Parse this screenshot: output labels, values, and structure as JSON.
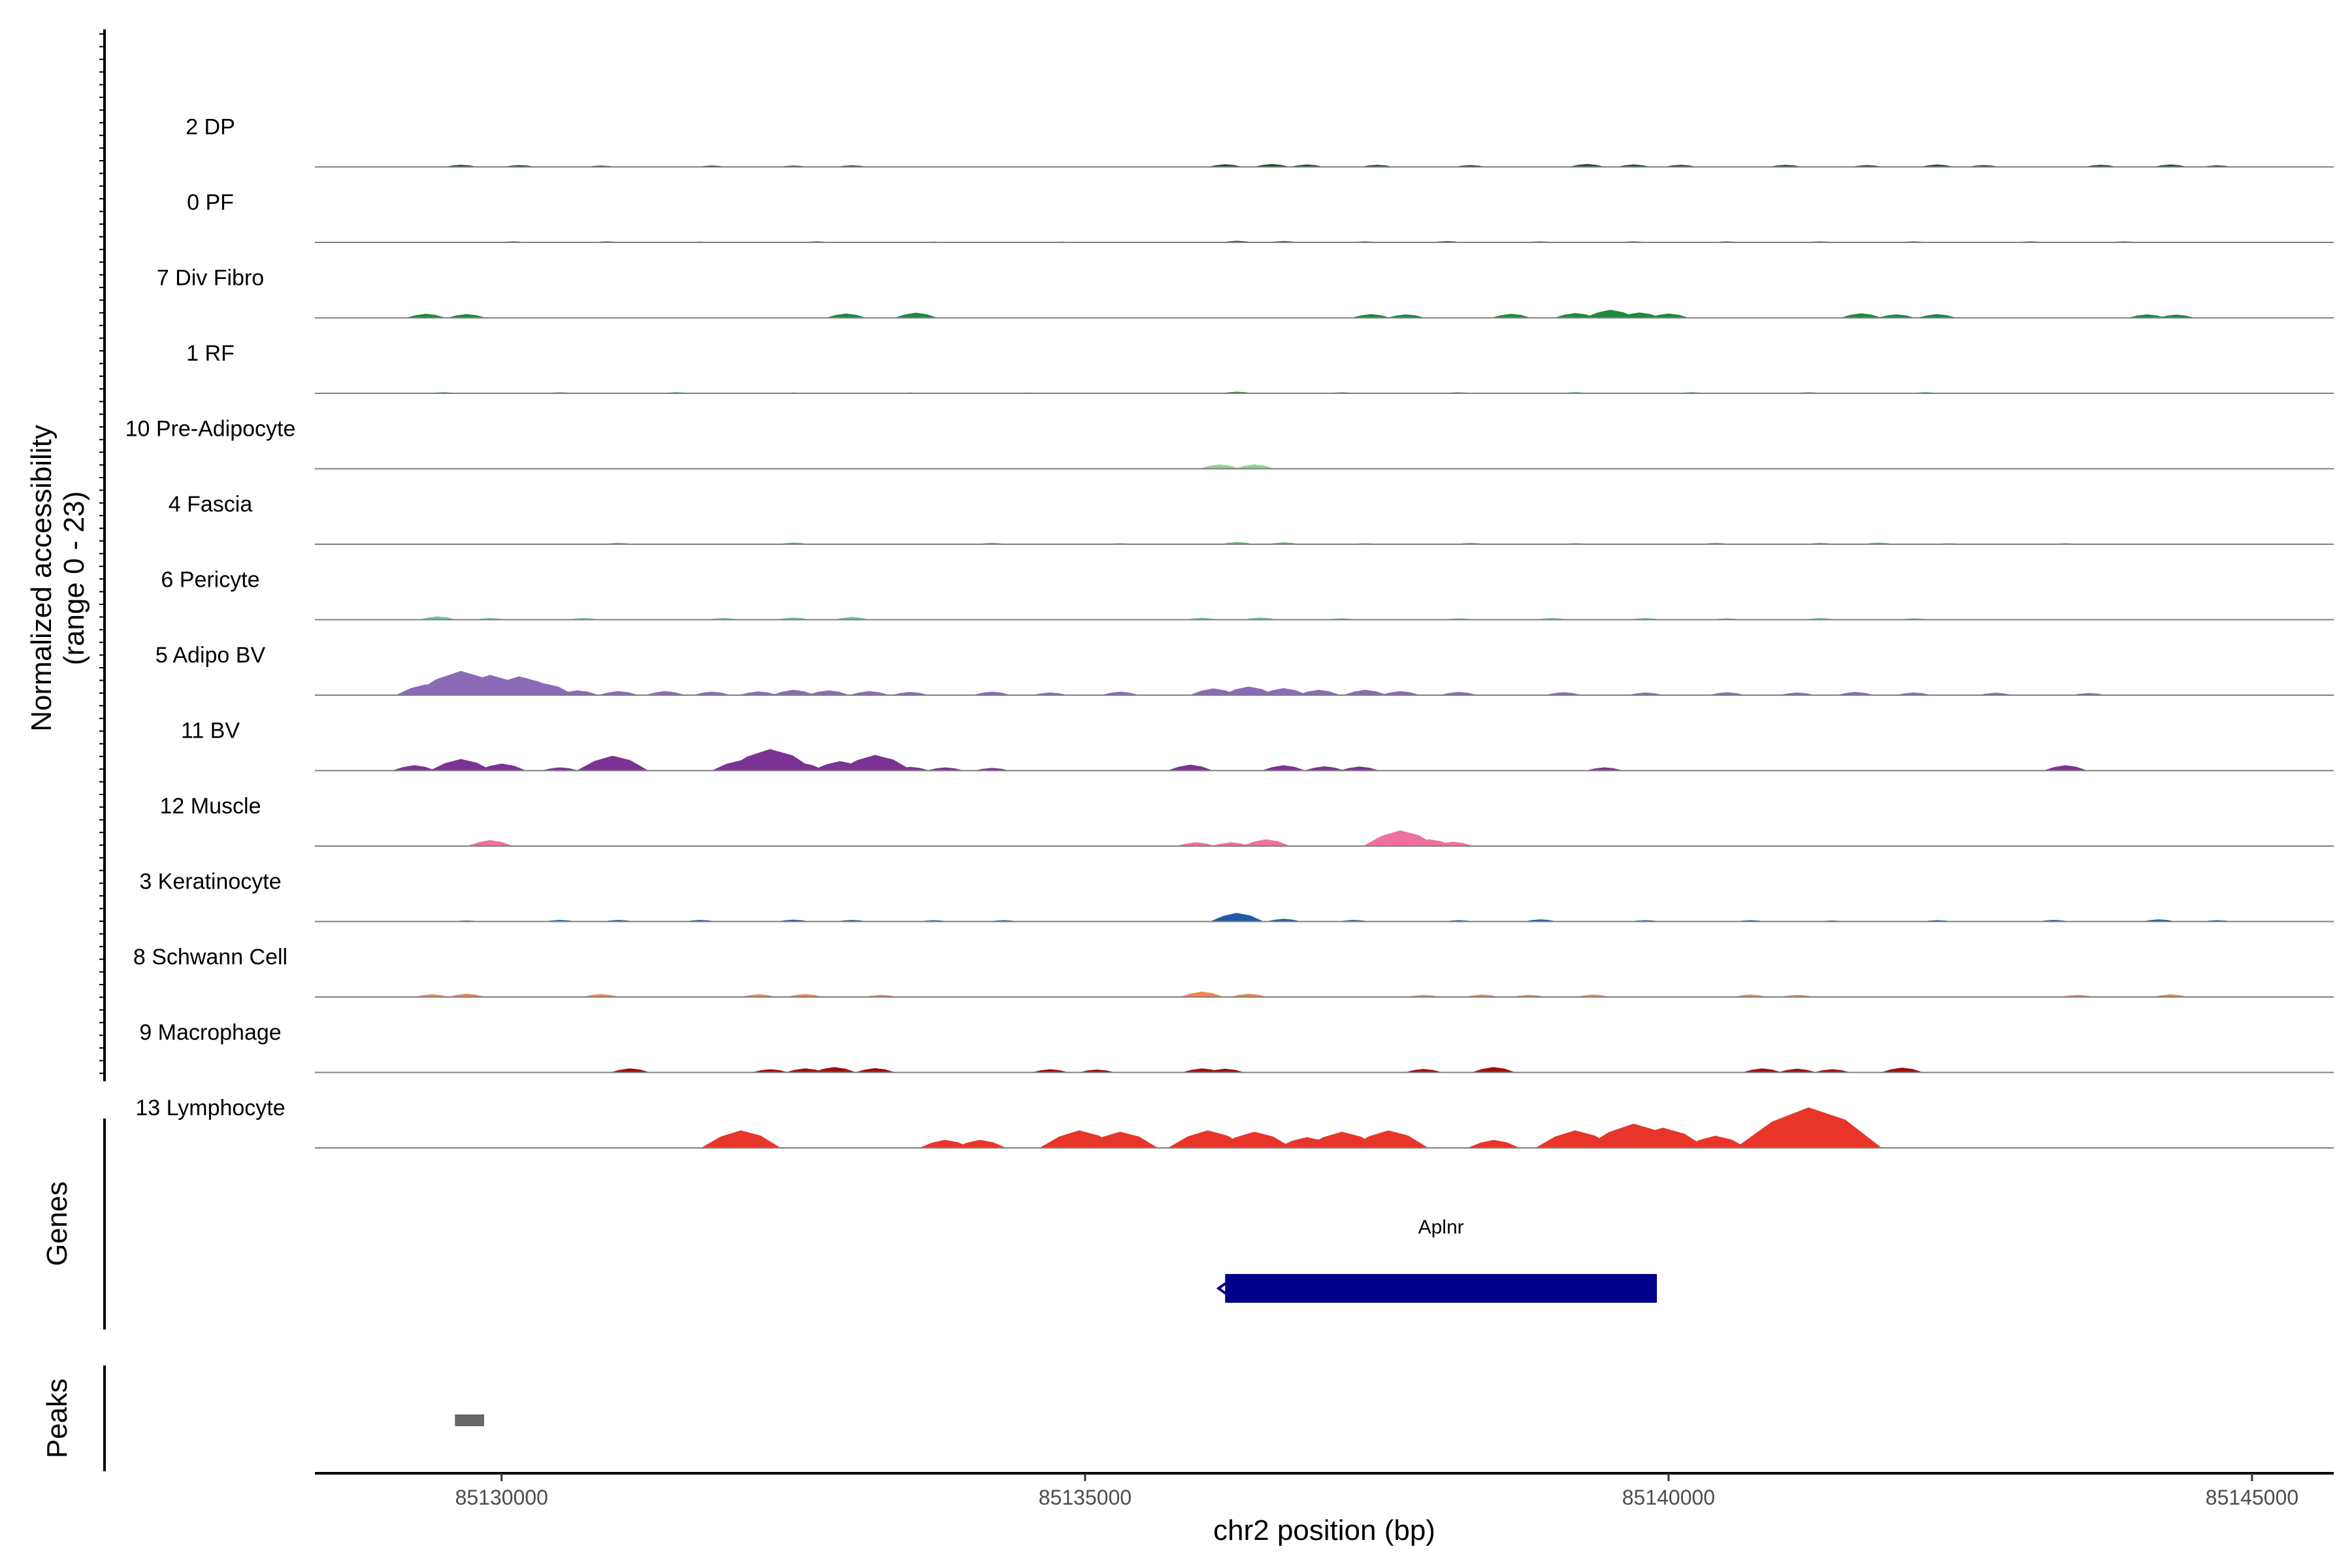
{
  "chart_data": {
    "type": "area",
    "title": "",
    "ylabel": "Normalized accessibility",
    "ylabel_range": "(range 0 - 23)",
    "ylim": [
      0,
      23
    ],
    "xlabel": "chr2 position (bp)",
    "xlim": [
      85128400,
      85145700
    ],
    "xticks": [
      85130000,
      85135000,
      85140000,
      85145000
    ],
    "xtick_labels": [
      "85130000",
      "85135000",
      "85140000",
      "85145000"
    ],
    "tracks": [
      {
        "label": "2 DP",
        "color": "#1b4d2b",
        "peaks": [
          [
            85129650,
            0.8
          ],
          [
            85130150,
            0.7
          ],
          [
            85130850,
            0.5
          ],
          [
            85131800,
            0.5
          ],
          [
            85132500,
            0.5
          ],
          [
            85133000,
            0.6
          ],
          [
            85136200,
            1.0
          ],
          [
            85136600,
            1.1
          ],
          [
            85136900,
            0.9
          ],
          [
            85137500,
            0.8
          ],
          [
            85138300,
            0.7
          ],
          [
            85139300,
            1.1
          ],
          [
            85139700,
            0.9
          ],
          [
            85140100,
            0.8
          ],
          [
            85141000,
            0.8
          ],
          [
            85141700,
            0.7
          ],
          [
            85142300,
            0.9
          ],
          [
            85142700,
            0.7
          ],
          [
            85143700,
            0.8
          ],
          [
            85144300,
            0.9
          ],
          [
            85144700,
            0.6
          ]
        ]
      },
      {
        "label": "0 PF",
        "color": "#1f6b3e",
        "peaks": [
          [
            85130100,
            0.4
          ],
          [
            85130900,
            0.4
          ],
          [
            85131700,
            0.3
          ],
          [
            85132700,
            0.4
          ],
          [
            85133700,
            0.3
          ],
          [
            85134800,
            0.3
          ],
          [
            85136300,
            0.6
          ],
          [
            85136700,
            0.5
          ],
          [
            85137400,
            0.4
          ],
          [
            85138100,
            0.5
          ],
          [
            85138900,
            0.4
          ],
          [
            85139700,
            0.4
          ],
          [
            85140500,
            0.4
          ],
          [
            85141300,
            0.4
          ],
          [
            85142100,
            0.4
          ],
          [
            85143100,
            0.4
          ],
          [
            85143900,
            0.4
          ]
        ]
      },
      {
        "label": "7 Div Fibro",
        "color": "#1e8a3e",
        "peaks": [
          [
            85129350,
            1.5
          ],
          [
            85129700,
            1.4
          ],
          [
            85132950,
            1.6
          ],
          [
            85133550,
            1.9
          ],
          [
            85137450,
            1.4
          ],
          [
            85137750,
            1.3
          ],
          [
            85138650,
            1.5
          ],
          [
            85139200,
            1.8
          ],
          [
            85139500,
            3.0
          ],
          [
            85139750,
            2.0
          ],
          [
            85140000,
            1.6
          ],
          [
            85141650,
            1.7
          ],
          [
            85141950,
            1.3
          ],
          [
            85142300,
            1.4
          ],
          [
            85144100,
            1.3
          ],
          [
            85144350,
            1.2
          ]
        ]
      },
      {
        "label": "1 RF",
        "color": "#2b8f44",
        "peaks": [
          [
            85129500,
            0.4
          ],
          [
            85130500,
            0.4
          ],
          [
            85131500,
            0.4
          ],
          [
            85132500,
            0.3
          ],
          [
            85133500,
            0.3
          ],
          [
            85134500,
            0.3
          ],
          [
            85136300,
            0.6
          ],
          [
            85137200,
            0.4
          ],
          [
            85138200,
            0.4
          ],
          [
            85139200,
            0.4
          ],
          [
            85140200,
            0.4
          ],
          [
            85141200,
            0.4
          ],
          [
            85142200,
            0.4
          ]
        ]
      },
      {
        "label": "10 Pre-Adipocyte",
        "color": "#8fd48a",
        "peaks": [
          [
            85136150,
            1.6
          ],
          [
            85136450,
            1.6
          ]
        ]
      },
      {
        "label": "4 Fascia",
        "color": "#5fb870",
        "peaks": [
          [
            85131000,
            0.5
          ],
          [
            85132500,
            0.6
          ],
          [
            85134200,
            0.5
          ],
          [
            85135300,
            0.4
          ],
          [
            85136300,
            0.8
          ],
          [
            85136700,
            0.7
          ],
          [
            85137400,
            0.4
          ],
          [
            85138300,
            0.5
          ],
          [
            85139200,
            0.4
          ],
          [
            85140400,
            0.5
          ],
          [
            85141300,
            0.5
          ],
          [
            85141800,
            0.6
          ],
          [
            85142400,
            0.4
          ],
          [
            85143400,
            0.4
          ]
        ]
      },
      {
        "label": "6 Pericyte",
        "color": "#6cc2a3",
        "peaks": [
          [
            85129450,
            1.2
          ],
          [
            85129900,
            0.6
          ],
          [
            85130700,
            0.6
          ],
          [
            85131900,
            0.6
          ],
          [
            85132500,
            0.8
          ],
          [
            85133000,
            1.0
          ],
          [
            85136000,
            0.7
          ],
          [
            85136500,
            0.8
          ],
          [
            85137200,
            0.5
          ],
          [
            85138200,
            0.5
          ],
          [
            85139000,
            0.6
          ],
          [
            85139800,
            0.6
          ],
          [
            85140500,
            0.5
          ],
          [
            85141300,
            0.6
          ],
          [
            85142100,
            0.5
          ]
        ]
      },
      {
        "label": "5 Adipo BV",
        "color": "#8b6bb8",
        "peaks": [
          [
            85129350,
            4.0
          ],
          [
            85129650,
            9.0
          ],
          [
            85129900,
            7.5
          ],
          [
            85130150,
            7.0
          ],
          [
            85130350,
            4.5
          ],
          [
            85130650,
            1.8
          ],
          [
            85131000,
            1.5
          ],
          [
            85131400,
            1.5
          ],
          [
            85131800,
            1.3
          ],
          [
            85132200,
            1.4
          ],
          [
            85132500,
            2.0
          ],
          [
            85132800,
            1.8
          ],
          [
            85133150,
            1.5
          ],
          [
            85133500,
            1.2
          ],
          [
            85134200,
            1.3
          ],
          [
            85134700,
            1.0
          ],
          [
            85135300,
            1.3
          ],
          [
            85136100,
            2.5
          ],
          [
            85136400,
            3.2
          ],
          [
            85136700,
            2.6
          ],
          [
            85137000,
            2.0
          ],
          [
            85137400,
            2.0
          ],
          [
            85137700,
            1.5
          ],
          [
            85138200,
            1.2
          ],
          [
            85139100,
            1.1
          ],
          [
            85139800,
            1.0
          ],
          [
            85140500,
            1.1
          ],
          [
            85141100,
            1.0
          ],
          [
            85141600,
            1.2
          ],
          [
            85142100,
            1.0
          ],
          [
            85142800,
            0.9
          ],
          [
            85143600,
            0.8
          ]
        ]
      },
      {
        "label": "11 BV",
        "color": "#7b3294",
        "peaks": [
          [
            85129250,
            2.0
          ],
          [
            85129650,
            4.3
          ],
          [
            85130000,
            2.6
          ],
          [
            85130500,
            1.2
          ],
          [
            85130950,
            5.5
          ],
          [
            85132050,
            3.8
          ],
          [
            85132300,
            8.0
          ],
          [
            85132550,
            3.0
          ],
          [
            85132900,
            3.5
          ],
          [
            85133200,
            5.8
          ],
          [
            85133500,
            1.4
          ],
          [
            85133800,
            1.2
          ],
          [
            85134200,
            1.0
          ],
          [
            85135900,
            2.2
          ],
          [
            85136700,
            2.0
          ],
          [
            85137050,
            1.6
          ],
          [
            85137350,
            1.5
          ],
          [
            85139450,
            1.2
          ],
          [
            85143400,
            2.0
          ]
        ]
      },
      {
        "label": "12 Muscle",
        "color": "#f070a0",
        "peaks": [
          [
            85129900,
            2.2
          ],
          [
            85135950,
            1.4
          ],
          [
            85136250,
            1.4
          ],
          [
            85136550,
            2.5
          ],
          [
            85137700,
            5.8
          ],
          [
            85137950,
            2.5
          ],
          [
            85138150,
            1.6
          ]
        ]
      },
      {
        "label": "3 Keratinocyte",
        "color": "#1f5aa6",
        "peaks": [
          [
            85129700,
            0.4
          ],
          [
            85130500,
            0.6
          ],
          [
            85131000,
            0.6
          ],
          [
            85131700,
            0.6
          ],
          [
            85132500,
            0.7
          ],
          [
            85133000,
            0.6
          ],
          [
            85133700,
            0.5
          ],
          [
            85134300,
            0.5
          ],
          [
            85136300,
            3.2
          ],
          [
            85136700,
            1.0
          ],
          [
            85137300,
            0.6
          ],
          [
            85138200,
            0.5
          ],
          [
            85138900,
            0.8
          ],
          [
            85139800,
            0.5
          ],
          [
            85140700,
            0.5
          ],
          [
            85141400,
            0.4
          ],
          [
            85142300,
            0.5
          ],
          [
            85143300,
            0.6
          ],
          [
            85144200,
            0.8
          ],
          [
            85144700,
            0.5
          ]
        ]
      },
      {
        "label": "8 Schwann Cell",
        "color": "#f4884a",
        "peaks": [
          [
            85129400,
            1.0
          ],
          [
            85129700,
            1.2
          ],
          [
            85130850,
            1.1
          ],
          [
            85132200,
            1.0
          ],
          [
            85132600,
            1.1
          ],
          [
            85133250,
            0.8
          ],
          [
            85136000,
            2.0
          ],
          [
            85136400,
            1.2
          ],
          [
            85137900,
            0.8
          ],
          [
            85138400,
            0.9
          ],
          [
            85138800,
            0.8
          ],
          [
            85139350,
            0.9
          ],
          [
            85140700,
            0.9
          ],
          [
            85141100,
            0.8
          ],
          [
            85143500,
            0.8
          ],
          [
            85144300,
            1.0
          ]
        ]
      },
      {
        "label": "9 Macrophage",
        "color": "#9e0f0f",
        "peaks": [
          [
            85131100,
            1.5
          ],
          [
            85132300,
            1.2
          ],
          [
            85132600,
            1.5
          ],
          [
            85132850,
            2.0
          ],
          [
            85133200,
            1.6
          ],
          [
            85134700,
            1.2
          ],
          [
            85135100,
            1.1
          ],
          [
            85136000,
            1.5
          ],
          [
            85136200,
            1.4
          ],
          [
            85137900,
            1.3
          ],
          [
            85138500,
            2.0
          ],
          [
            85140800,
            1.5
          ],
          [
            85141100,
            1.4
          ],
          [
            85141400,
            1.2
          ],
          [
            85142000,
            1.8
          ]
        ]
      },
      {
        "label": "13 Lymphocyte",
        "color": "#e8352a",
        "peaks": [
          [
            85132050,
            6.5
          ],
          [
            85133800,
            3.0
          ],
          [
            85134100,
            3.0
          ],
          [
            85134950,
            6.5
          ],
          [
            85135300,
            6.0
          ],
          [
            85136050,
            6.5
          ],
          [
            85136450,
            6.0
          ],
          [
            85136900,
            4.0
          ],
          [
            85137200,
            6.0
          ],
          [
            85137600,
            6.5
          ],
          [
            85138500,
            3.0
          ],
          [
            85139200,
            6.5
          ],
          [
            85139700,
            9.0
          ],
          [
            85139950,
            7.5
          ],
          [
            85140400,
            4.5
          ],
          [
            85140900,
            3.5
          ],
          [
            85141200,
            15.0
          ]
        ]
      }
    ],
    "genes_label": "Genes",
    "genes": [
      {
        "name": "Aplnr",
        "start": 85136200,
        "end": 85139900,
        "strand": "-",
        "color": "#00008b"
      }
    ],
    "peaks_label": "Peaks",
    "peak_regions": [
      {
        "start": 85129600,
        "end": 85129850,
        "color": "#666666"
      }
    ]
  }
}
